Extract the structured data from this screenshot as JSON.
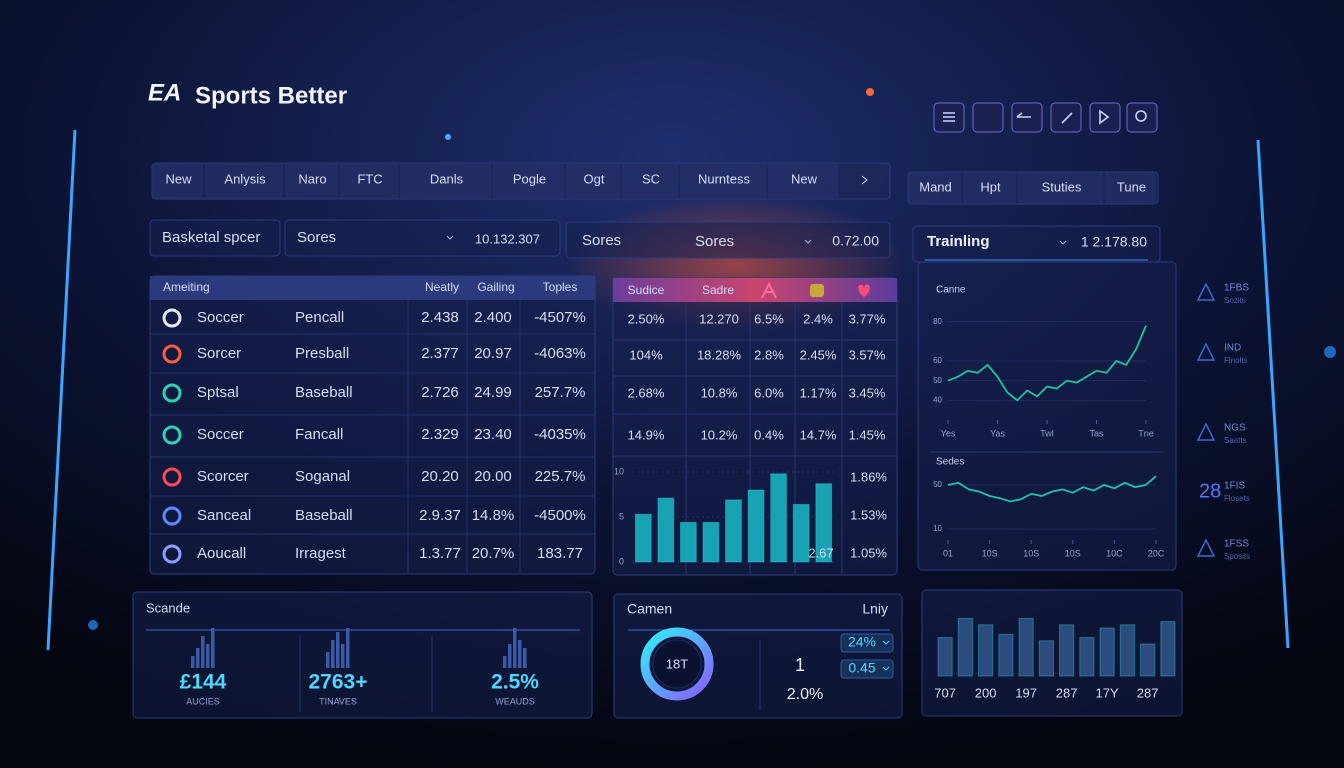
{
  "header": {
    "logo_mark": "EA",
    "title": "Sports Better"
  },
  "nav": {
    "tabs": [
      "New",
      "Anlysis",
      "Naro",
      "FTC",
      "Danls",
      "Pogle",
      "Ogt",
      "SC",
      "Nurntess",
      "New"
    ],
    "tabs_right": [
      "Mand",
      "Hpt",
      "Stuties",
      "Tune"
    ]
  },
  "filters": {
    "sport": "Basketal spcer",
    "select1": "Sores",
    "value1": "10.132.307",
    "select2": "Sores",
    "select3": "Sores",
    "value2": "0.72.00",
    "training": "Trainling",
    "training_value": "1 2.178.80"
  },
  "table": {
    "headers": [
      "Ameiting",
      "Neatly",
      "Gailing",
      "Toples"
    ],
    "rows": [
      [
        "Soccer",
        "Pencall",
        "2.438",
        "2.400",
        "-4507%"
      ],
      [
        "Sorcer",
        "Presball",
        "2.377",
        "20.97",
        "-4063%"
      ],
      [
        "Sptsal",
        "Baseball",
        "2.726",
        "24.99",
        "257.7%"
      ],
      [
        "Soccer",
        "Fancall",
        "2.329",
        "23.40",
        "-4035%"
      ],
      [
        "Scorcer",
        "Soganal",
        "20.20",
        "20.00",
        "225.7%"
      ],
      [
        "Sanceal",
        "Baseball",
        "2.9.37",
        "14.8%",
        "-4500%"
      ],
      [
        "Aoucall",
        "Irragest",
        "1.3.77",
        "20.7%",
        "183.77"
      ]
    ]
  },
  "odds": {
    "headers": [
      "Sudice",
      "Sadre"
    ],
    "rows": [
      [
        "2.50%",
        "12.270",
        "6.5%",
        "2.4%",
        "3.77%"
      ],
      [
        "104%",
        "18.28%",
        "2.8%",
        "2.45%",
        "3.57%"
      ],
      [
        "2.68%",
        "10.8%",
        "6.0%",
        "1.17%",
        "3.45%"
      ],
      [
        "14.9%",
        "10.2%",
        "0.4%",
        "14.7%",
        "1.45%"
      ]
    ],
    "side_values": [
      "1.86%",
      "1.53%",
      "1.05%"
    ]
  },
  "sidebar": [
    {
      "code": "1FBS",
      "sub": "Sozits"
    },
    {
      "code": "IND",
      "sub": "Flnolts"
    },
    {
      "code": "NGS",
      "sub": "Saatts"
    },
    {
      "code": "1FIS",
      "sub": "Flosets",
      "number": "28"
    },
    {
      "code": "1FSS",
      "sub": "Sposits"
    }
  ],
  "summary": {
    "title": "Scande",
    "stats": [
      {
        "value": "£144",
        "label": "AUCIES",
        "spark": [
          3,
          5,
          8,
          6,
          10
        ]
      },
      {
        "value": "2763+",
        "label": "TINAVES",
        "spark": [
          4,
          7,
          9,
          6,
          10
        ]
      },
      {
        "value": "2.5%",
        "label": "WEAUDS",
        "spark": [
          3,
          6,
          10,
          7,
          5
        ]
      }
    ]
  },
  "gauge": {
    "title": "Camen",
    "right_title": "Lniy",
    "donut_label": "18T",
    "count": "1",
    "rate": "2.0%",
    "badges": [
      "24%",
      "0.45"
    ]
  },
  "chart_data": [
    {
      "type": "bar",
      "values": [
        5.3,
        7.1,
        4.4,
        4.4,
        6.9,
        8,
        9.8,
        6.4,
        8.7
      ],
      "color": "#17a3b3",
      "ylim": [
        0,
        10
      ],
      "yticks": [
        0,
        5,
        10
      ],
      "annotation": "2.67"
    },
    {
      "type": "line",
      "title": "Canne",
      "x": [
        0,
        1,
        2,
        3,
        4,
        5,
        6,
        7,
        8,
        9,
        10,
        11,
        12,
        13,
        14,
        15,
        16,
        17,
        18,
        19,
        20
      ],
      "values": [
        50,
        52,
        55,
        54,
        58,
        52,
        44,
        40,
        45,
        42,
        47,
        46,
        50,
        49,
        52,
        55,
        54,
        60,
        58,
        66,
        78
      ],
      "color": "#1fc49a",
      "xlim": [
        0,
        20
      ],
      "ylim": [
        30,
        90
      ],
      "yticks": [
        40,
        50,
        60,
        80
      ],
      "xticks": [
        {
          "value": 0,
          "label": "Yes"
        },
        {
          "value": 5,
          "label": "Yas"
        },
        {
          "value": 10,
          "label": "Twl"
        },
        {
          "value": 15,
          "label": "Tas"
        },
        {
          "value": 20,
          "label": "Tne"
        }
      ]
    },
    {
      "type": "line",
      "title": "Sedes",
      "x": [
        0,
        1,
        2,
        3,
        4,
        5,
        6,
        7,
        8,
        9,
        10,
        11,
        12,
        13,
        14,
        15,
        16,
        17,
        18,
        19,
        20
      ],
      "values": [
        50,
        52,
        46,
        44,
        40,
        38,
        35,
        37,
        42,
        40,
        44,
        46,
        43,
        48,
        45,
        50,
        47,
        52,
        48,
        50,
        58
      ],
      "color": "#1fc4b0",
      "xlim": [
        0,
        20
      ],
      "ylim": [
        0,
        60
      ],
      "yticks": [
        10,
        50
      ],
      "xticks": [
        {
          "value": 0,
          "label": "01"
        },
        {
          "value": 4,
          "label": "10S"
        },
        {
          "value": 8,
          "label": "10S"
        },
        {
          "value": 12,
          "label": "10S"
        },
        {
          "value": 16,
          "label": "10C"
        },
        {
          "value": 20,
          "label": "20C"
        }
      ]
    },
    {
      "type": "bar",
      "categories": [
        "707",
        null,
        "200",
        null,
        "197",
        null,
        "287",
        null,
        "17Y",
        null,
        "287",
        null
      ],
      "values": [
        6,
        9,
        8,
        6.5,
        9,
        5.5,
        8,
        6,
        7.5,
        8,
        5,
        8.5
      ],
      "color": "#2c4b7e",
      "ylim": [
        0,
        10
      ]
    }
  ]
}
